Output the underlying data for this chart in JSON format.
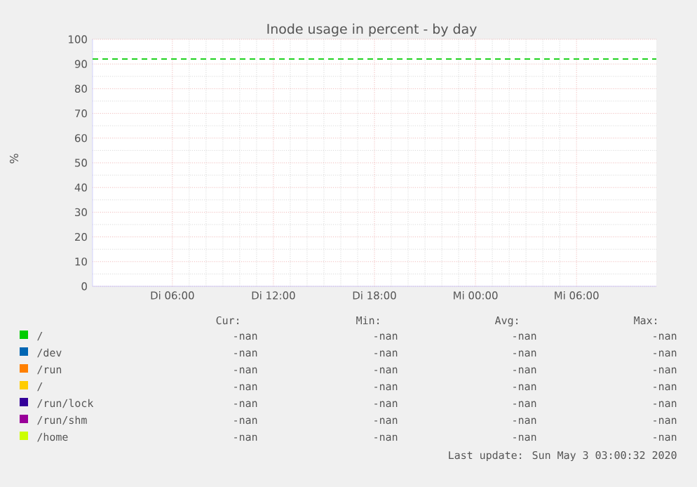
{
  "chart_data": {
    "type": "line",
    "title": "Inode usage in percent - by day",
    "ylabel": "%",
    "categories": [
      "Di 06:00",
      "Di 12:00",
      "Di 18:00",
      "Mi 00:00",
      "Mi 06:00"
    ],
    "ylim": [
      0,
      100
    ],
    "yticks": [
      0,
      10,
      20,
      30,
      40,
      50,
      60,
      70,
      80,
      90,
      100
    ],
    "grid": true,
    "legend": "bottom",
    "series": [
      {
        "name": "/",
        "color": "#00cc00",
        "values": [
          null,
          null,
          null,
          null,
          null
        ]
      },
      {
        "name": "/dev",
        "color": "#0066b3",
        "values": [
          null,
          null,
          null,
          null,
          null
        ]
      },
      {
        "name": "/run",
        "color": "#ff8000",
        "values": [
          null,
          null,
          null,
          null,
          null
        ]
      },
      {
        "name": "/",
        "color": "#ffcc00",
        "values": [
          null,
          null,
          null,
          null,
          null
        ]
      },
      {
        "name": "/run/lock",
        "color": "#330099",
        "values": [
          null,
          null,
          null,
          null,
          null
        ]
      },
      {
        "name": "/run/shm",
        "color": "#990099",
        "values": [
          null,
          null,
          null,
          null,
          null
        ]
      },
      {
        "name": "/home",
        "color": "#ccff00",
        "values": [
          null,
          null,
          null,
          null,
          null
        ]
      }
    ],
    "ref_lines": [
      {
        "axis": "y",
        "value": 92,
        "color": "#00cc00",
        "line_style": "dashed"
      }
    ],
    "annotations": [
      "Cur:",
      "Min:",
      "Avg:",
      "Max:",
      "-nan",
      "-nan",
      "-nan",
      "-nan",
      "-nan",
      "-nan",
      "-nan",
      "-nan",
      "-nan",
      "-nan",
      "-nan",
      "-nan",
      "-nan",
      "-nan",
      "-nan",
      "-nan",
      "-nan",
      "-nan",
      "-nan",
      "-nan",
      "-nan",
      "-nan",
      "-nan",
      "-nan",
      "-nan",
      "-nan",
      "-nan",
      "-nan",
      "Last update: Sun May  3 03:00:32 2020"
    ]
  }
}
